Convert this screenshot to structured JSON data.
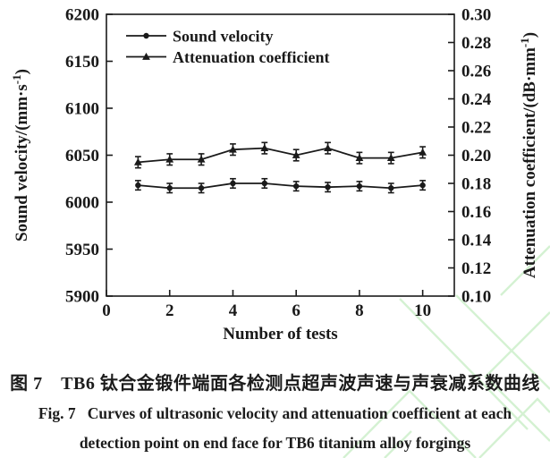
{
  "figure": {
    "caption_zh": "图 7　TB6 钛合金锻件端面各检测点超声波声速与声衰减系数曲线",
    "caption_en_line1": "Fig. 7   Curves of ultrasonic velocity and attenuation coefficient at each",
    "caption_en_line2": "detection point on end face for TB6 titanium alloy forgings"
  },
  "colors": {
    "line": "#1a1a1a",
    "text": "#191919",
    "watermark": "#d4f1d2",
    "background": "#ffffff"
  },
  "chart_data": {
    "type": "line",
    "title": "",
    "xlabel": "Number of tests",
    "xlim": [
      0,
      11
    ],
    "xticks": [
      0,
      2,
      4,
      6,
      8,
      10
    ],
    "x": [
      1,
      2,
      3,
      4,
      5,
      6,
      7,
      8,
      9,
      10
    ],
    "grid": false,
    "legend_position": "top-left",
    "left_axis": {
      "label": "Sound velocity/(mm·s⁻¹)",
      "lim": [
        5900,
        6200
      ],
      "ticks": [
        5900,
        5950,
        6000,
        6050,
        6100,
        6150,
        6200
      ],
      "tick_decimals": 0
    },
    "right_axis": {
      "label": "Attenuation coefficient/(dB·mm⁻¹)",
      "lim": [
        0.1,
        0.3
      ],
      "ticks": [
        0.1,
        0.12,
        0.14,
        0.16,
        0.18,
        0.2,
        0.22,
        0.24,
        0.26,
        0.28,
        0.3
      ],
      "tick_decimals": 2
    },
    "series": [
      {
        "name": "Sound velocity",
        "marker": "circle",
        "axis": "left",
        "values": [
          6018,
          6015,
          6015,
          6020,
          6020,
          6017,
          6016,
          6017,
          6015,
          6018
        ],
        "error": 5
      },
      {
        "name": "Attenuation coefficient",
        "marker": "triangle",
        "axis": "right",
        "values": [
          0.195,
          0.197,
          0.197,
          0.204,
          0.205,
          0.2,
          0.205,
          0.198,
          0.198,
          0.202
        ],
        "error": 0.004
      }
    ]
  }
}
